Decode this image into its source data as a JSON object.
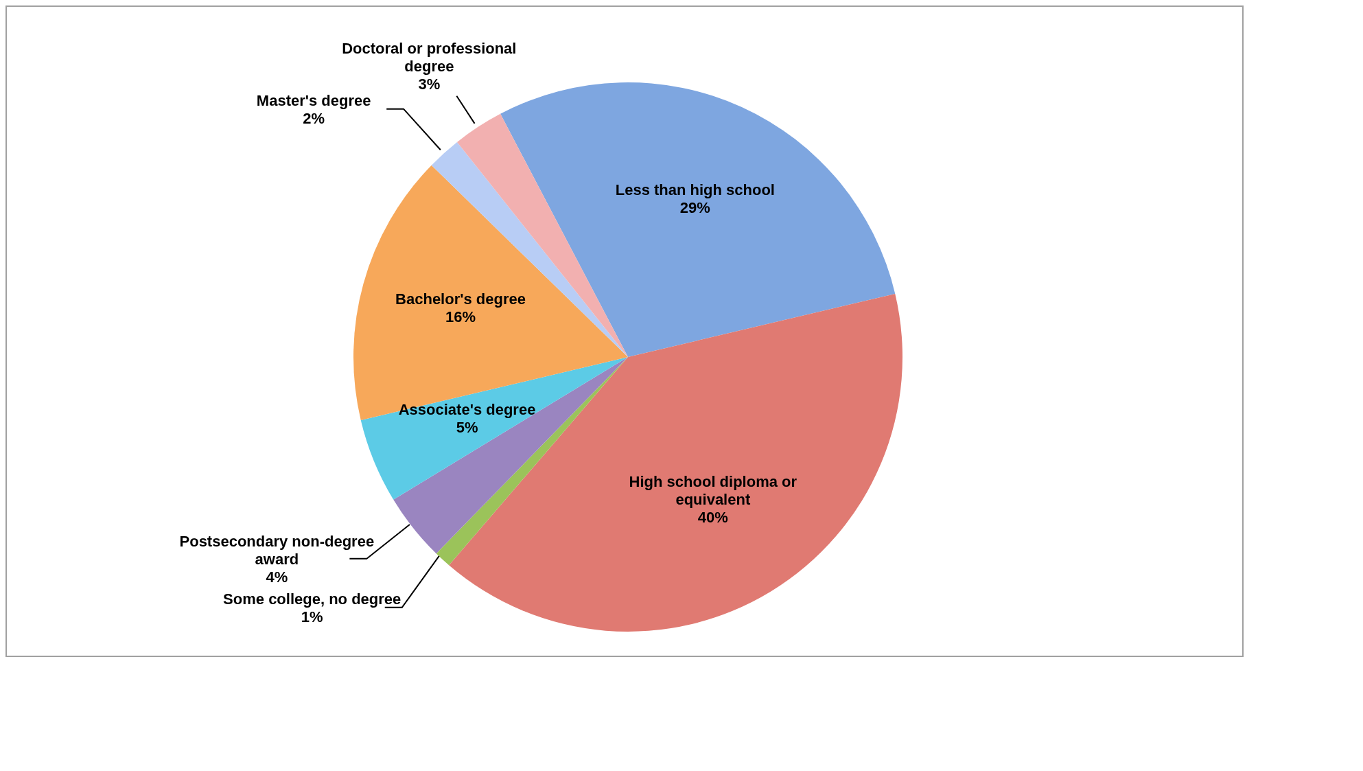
{
  "chart_data": {
    "type": "pie",
    "categories": [
      "Less than high school",
      "High school diploma or equivalent",
      "Some college, no degree",
      "Postsecondary non-degree award",
      "Associate's degree",
      "Bachelor's degree",
      "Master's degree",
      "Doctoral or professional degree"
    ],
    "values": [
      29,
      40,
      1,
      4,
      5,
      16,
      2,
      3
    ],
    "value_labels": [
      "29%",
      "40%",
      "1%",
      "4%",
      "5%",
      "16%",
      "2%",
      "3%"
    ],
    "colors": [
      "#7ea6e0",
      "#e07a72",
      "#9bc35a",
      "#9a85c0",
      "#5ccbe6",
      "#f7a85a",
      "#b8cdf5",
      "#f2b0b0"
    ],
    "legend": false
  }
}
